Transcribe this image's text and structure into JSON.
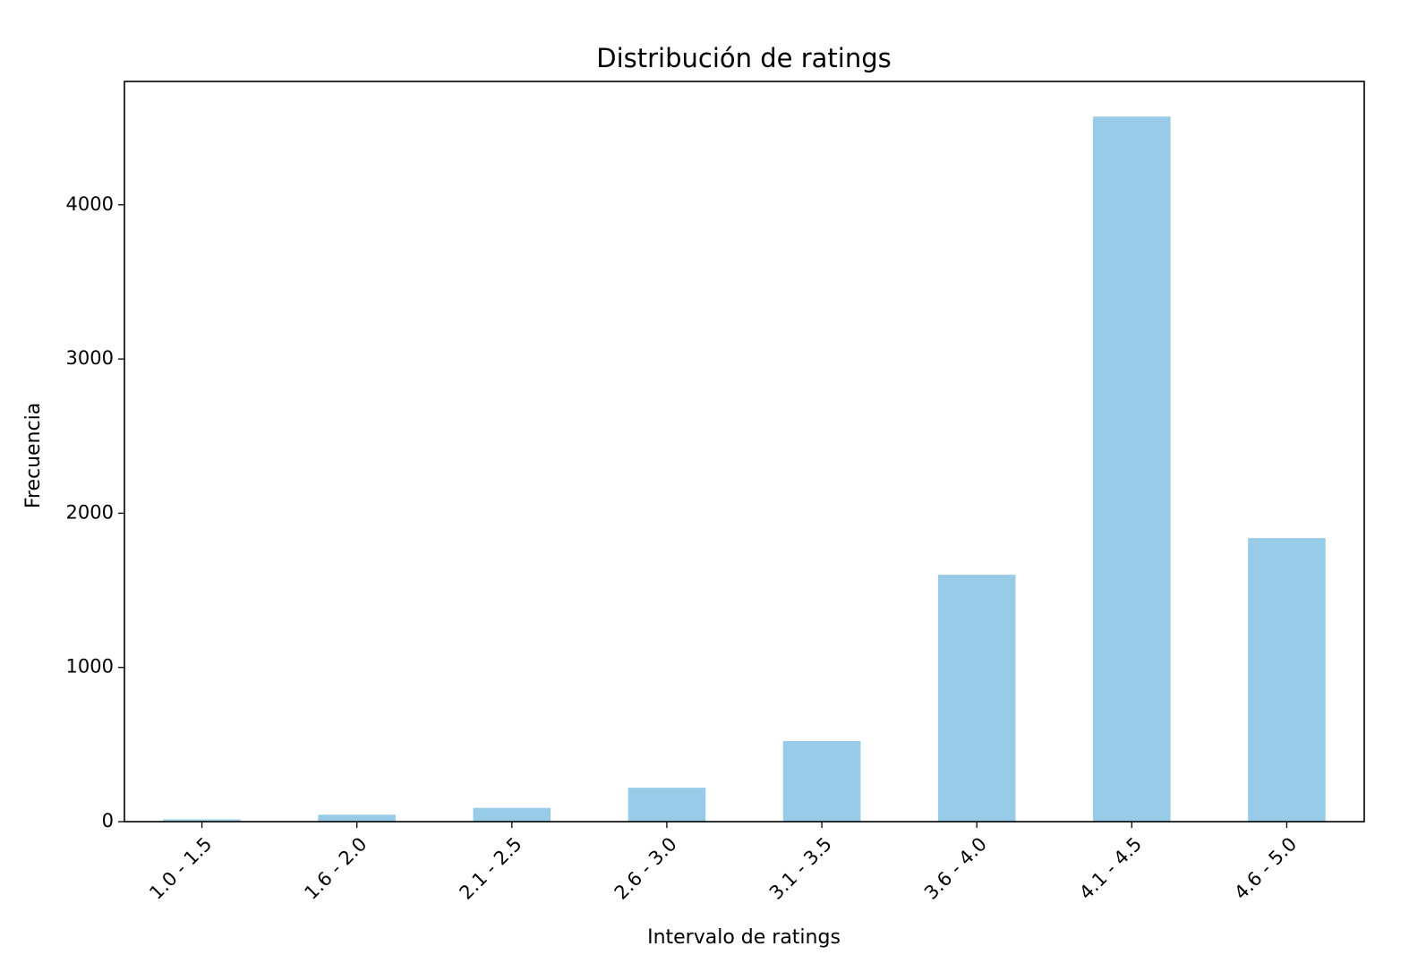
{
  "chart_data": {
    "type": "bar",
    "title": "Distribución de ratings",
    "xlabel": "Intervalo de ratings",
    "ylabel": "Frecuencia",
    "categories": [
      "1.0 - 1.5",
      "1.6 - 2.0",
      "2.1 - 2.5",
      "2.6 - 3.0",
      "3.1 - 3.5",
      "3.6 - 4.0",
      "4.1 - 4.5",
      "4.6 - 5.0"
    ],
    "values": [
      14,
      45,
      89,
      220,
      523,
      1601,
      4572,
      1839
    ],
    "ylim": [
      0,
      4800
    ],
    "yticks": [
      0,
      1000,
      2000,
      3000,
      4000
    ],
    "bar_color": "#97cbe7",
    "grid": false,
    "legend": false
  }
}
